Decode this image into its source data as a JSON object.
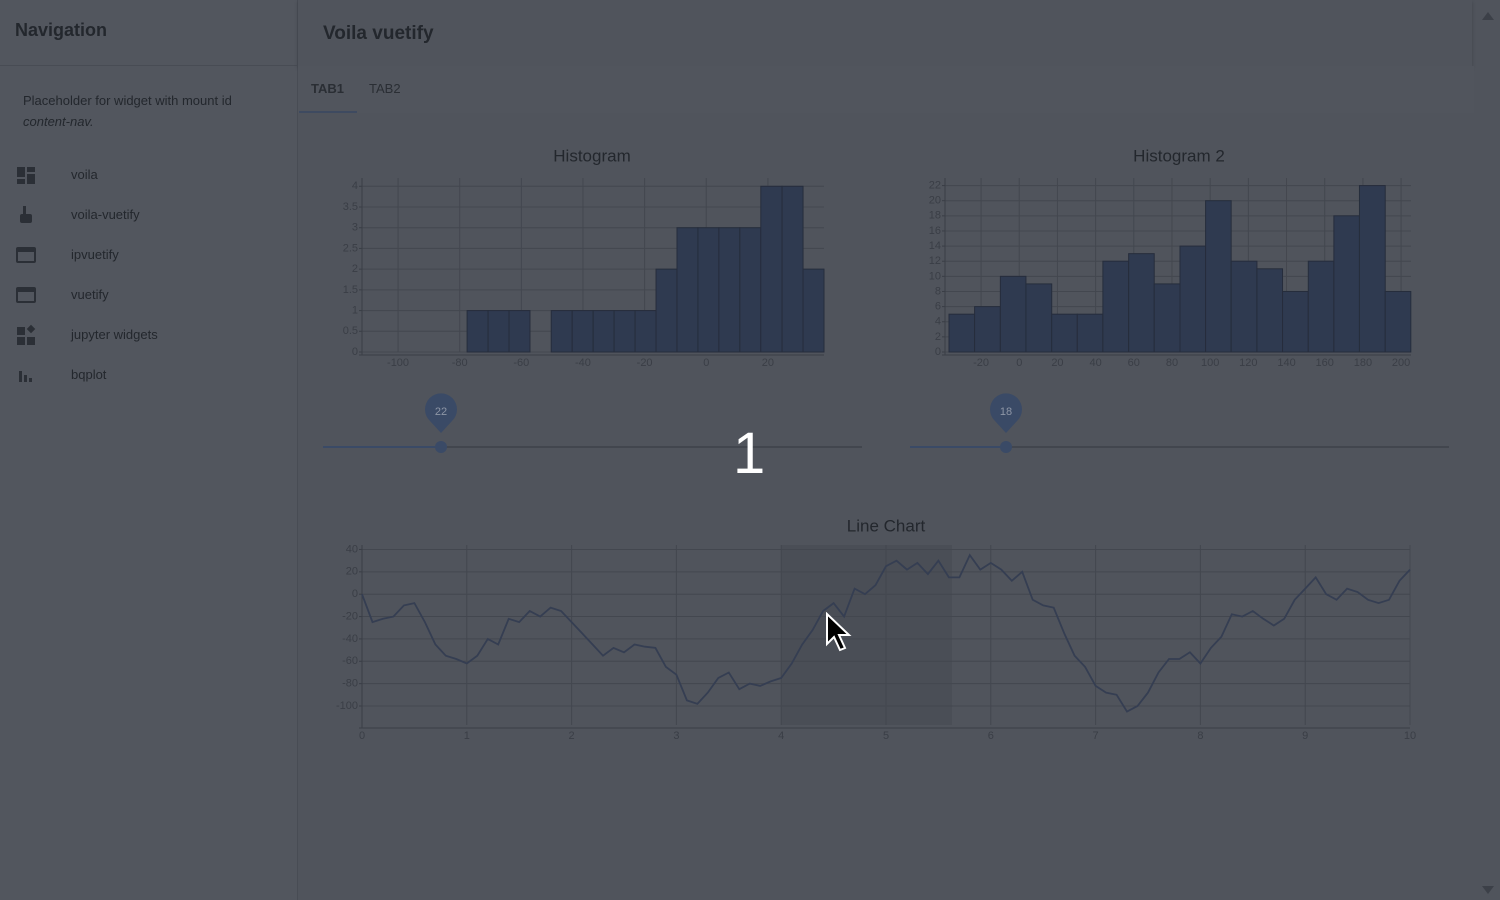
{
  "sidebar": {
    "title": "Navigation",
    "placeholder": "Placeholder for widget with mount id",
    "placeholder_id": "content-nav.",
    "items": [
      "voila",
      "voila-vuetify",
      "ipvuetify",
      "vuetify",
      "jupyter widgets",
      "bqplot"
    ]
  },
  "header": {
    "title": "Voila vuetify"
  },
  "tabs": [
    "TAB1",
    "TAB2"
  ],
  "sliders": [
    {
      "value": 22
    },
    {
      "value": 18
    }
  ],
  "overlay_number": 1,
  "chart_data": [
    {
      "type": "histogram",
      "title": "Histogram",
      "color": "#2f3a50",
      "bins": [
        -77.6,
        -70.8,
        -64.0,
        -57.2,
        -50.3,
        -43.5,
        -36.7,
        -29.9,
        -23.1,
        -16.3,
        -9.5,
        -2.7,
        4.1,
        10.9,
        17.7,
        24.6,
        31.4,
        38.2
      ],
      "values": [
        1,
        1,
        1,
        0,
        1,
        1,
        1,
        1,
        1,
        2,
        3,
        3,
        3,
        3,
        4,
        4,
        2
      ],
      "xlim": [
        -111.7,
        38.2
      ],
      "xticks": [
        -100,
        -80,
        -60,
        -40,
        -20,
        0,
        20
      ],
      "ylim": [
        0,
        4.2
      ],
      "yticks": [
        0,
        0.5,
        1,
        1.5,
        2,
        2.5,
        3,
        3.5,
        4
      ],
      "grid": true
    },
    {
      "type": "histogram",
      "title": "Histogram 2",
      "color": "#2f3a50",
      "bins": [
        -36.8,
        -23.4,
        -9.9,
        3.5,
        17.0,
        30.4,
        43.8,
        57.3,
        70.7,
        84.2,
        97.6,
        111.0,
        124.5,
        137.9,
        151.4,
        164.8,
        178.2,
        191.7,
        205.1
      ],
      "values": [
        5,
        6,
        10,
        9,
        5,
        5,
        12,
        13,
        9,
        14,
        20,
        12,
        11,
        8,
        12,
        18,
        22,
        8
      ],
      "xlim": [
        -38.9,
        205.2
      ],
      "xticks": [
        -20,
        0,
        20,
        40,
        60,
        80,
        100,
        120,
        140,
        160,
        180,
        200
      ],
      "ylim": [
        0,
        23
      ],
      "yticks": [
        0,
        2,
        4,
        6,
        8,
        10,
        12,
        14,
        16,
        18,
        20,
        22
      ],
      "grid": true
    },
    {
      "type": "line",
      "title": "Line Chart",
      "color": "#353e52",
      "x": [
        0,
        0.1,
        0.2,
        0.3,
        0.4,
        0.5,
        0.6,
        0.7,
        0.8,
        0.9,
        1,
        1.1,
        1.2,
        1.3,
        1.4,
        1.5,
        1.6,
        1.7,
        1.8,
        1.9,
        2,
        2.1,
        2.2,
        2.3,
        2.4,
        2.5,
        2.6,
        2.7,
        2.8,
        2.9,
        3,
        3.1,
        3.2,
        3.3,
        3.4,
        3.5,
        3.6,
        3.7,
        3.8,
        3.9,
        4,
        4.1,
        4.2,
        4.3,
        4.4,
        4.5,
        4.6,
        4.7,
        4.8,
        4.9,
        5,
        5.1,
        5.2,
        5.3,
        5.4,
        5.5,
        5.6,
        5.7,
        5.8,
        5.9,
        6,
        6.1,
        6.2,
        6.3,
        6.4,
        6.5,
        6.6,
        6.7,
        6.8,
        6.9,
        7,
        7.1,
        7.2,
        7.3,
        7.4,
        7.5,
        7.6,
        7.7,
        7.8,
        7.9,
        8,
        8.1,
        8.2,
        8.3,
        8.4,
        8.5,
        8.6,
        8.7,
        8.8,
        8.9,
        9,
        9.1,
        9.2,
        9.3,
        9.4,
        9.5,
        9.6,
        9.7,
        9.8,
        9.9,
        10
      ],
      "values": [
        0,
        -25,
        -22,
        -20,
        -10,
        -8,
        -25,
        -45,
        -55,
        -58,
        -62,
        -55,
        -40,
        -45,
        -22,
        -25,
        -15,
        -20,
        -12,
        -15,
        -25,
        -35,
        -45,
        -55,
        -48,
        -52,
        -45,
        -47,
        -48,
        -65,
        -72,
        -95,
        -98,
        -88,
        -75,
        -70,
        -85,
        -80,
        -82,
        -78,
        -75,
        -62,
        -45,
        -32,
        -15,
        -8,
        -20,
        5,
        0,
        8,
        25,
        30,
        22,
        28,
        18,
        30,
        15,
        15,
        35,
        22,
        28,
        22,
        12,
        20,
        -5,
        -10,
        -12,
        -35,
        -55,
        -65,
        -82,
        -88,
        -90,
        -105,
        -100,
        -88,
        -70,
        -58,
        -58,
        -52,
        -62,
        -48,
        -38,
        -18,
        -20,
        -15,
        -22,
        -28,
        -22,
        -5,
        5,
        15,
        0,
        -5,
        5,
        2,
        -5,
        -8,
        -5,
        12,
        22
      ],
      "brush": [
        4,
        5.63
      ],
      "xlim": [
        0,
        10
      ],
      "xticks": [
        0,
        1,
        2,
        3,
        4,
        5,
        6,
        7,
        8,
        9,
        10
      ],
      "ylim": [
        -117,
        44
      ],
      "yticks": [
        -100,
        -80,
        -60,
        -40,
        -20,
        0,
        20,
        40
      ],
      "grid": true
    }
  ]
}
